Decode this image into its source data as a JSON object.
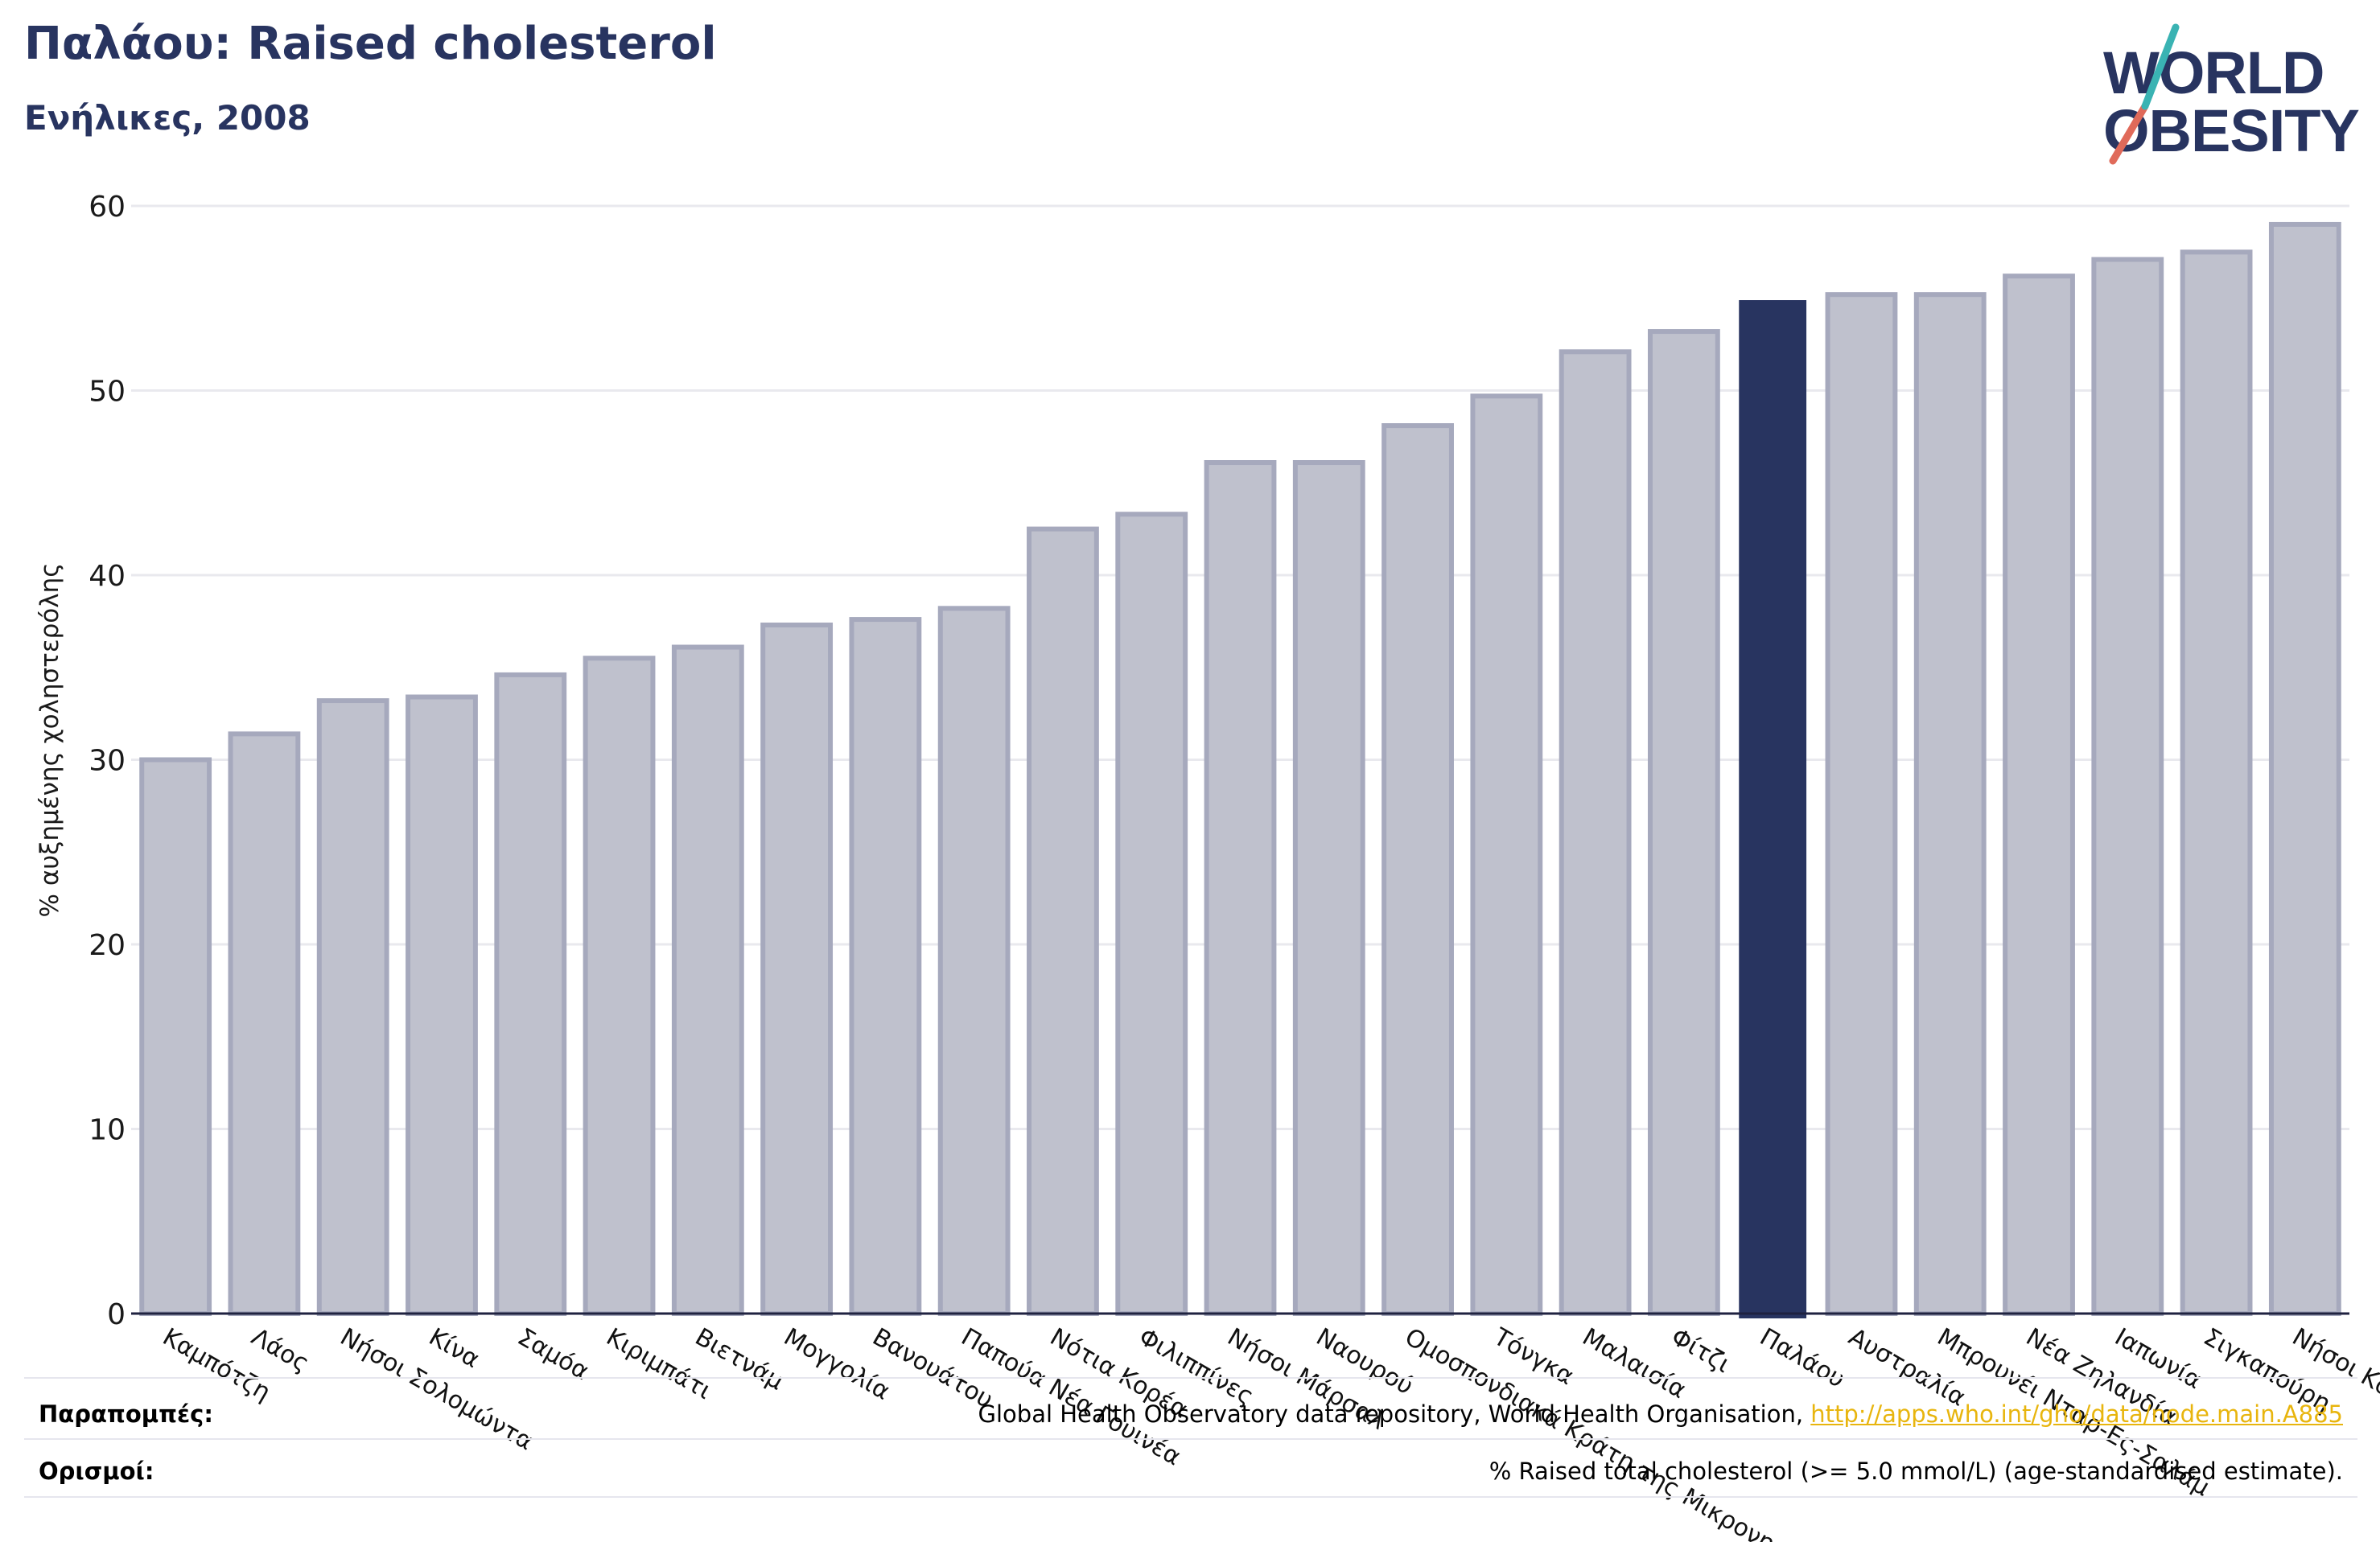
{
  "title": "Παλάου: Raised cholesterol",
  "subtitle": "Ενήλικες, 2008",
  "logo": {
    "line1": "WORLD",
    "line2": "OBESITY"
  },
  "footer": {
    "refs_label": "Παραπομπές:",
    "refs_text": "Global Health Observatory data repository, World Health Organisation, ",
    "refs_link": "http://apps.who.int/gho/data/node.main.A885",
    "defs_label": "Ορισμοί:",
    "defs_text": "% Raised total cholesterol (>= 5.0 mmol/L) (age-standardised estimate)."
  },
  "colors": {
    "bar": "#bfc1cd",
    "bar_edge": "#a6a9bd",
    "highlight": "#283460",
    "grid": "#e9e9ee",
    "text": "#1a1a1a"
  },
  "chart_data": {
    "type": "bar",
    "ylabel": "% αυξημένης χοληστερόλης",
    "xlabel": "",
    "ylim": [
      0,
      60
    ],
    "yticks": [
      0,
      10,
      20,
      30,
      40,
      50,
      60
    ],
    "grid": true,
    "highlight": "Παλάου",
    "categories": [
      "Καμπότζη",
      "Λάος",
      "Νήσοι Σολομώντα",
      "Κίνα",
      "Σαμόα",
      "Κιριμπάτι",
      "Βιετνάμ",
      "Μογγολία",
      "Βανουάτου",
      "Παπούα Νέα Γουινέα",
      "Νότια Κορέα",
      "Φιλιππίνες",
      "Νήσοι Μάρσαλ",
      "Ναουρού",
      "Ομοσπονδιακά Κράτη της Μικρονησίας",
      "Τόνγκα",
      "Μαλαισία",
      "Φίτζι",
      "Παλάου",
      "Αυστραλία",
      "Μπρουνέι Νταρ-Ες-Σαλάμ",
      "Νέα Ζηλανδία",
      "Ιαπωνία",
      "Σιγκαπούρη",
      "Νήσοι Κουκ"
    ],
    "values": [
      30.0,
      31.4,
      33.2,
      33.4,
      34.6,
      35.5,
      36.1,
      37.3,
      37.6,
      38.2,
      42.5,
      43.3,
      46.1,
      46.1,
      48.1,
      49.7,
      52.1,
      53.2,
      54.9,
      55.2,
      55.2,
      56.2,
      57.1,
      57.5,
      59.0
    ]
  }
}
